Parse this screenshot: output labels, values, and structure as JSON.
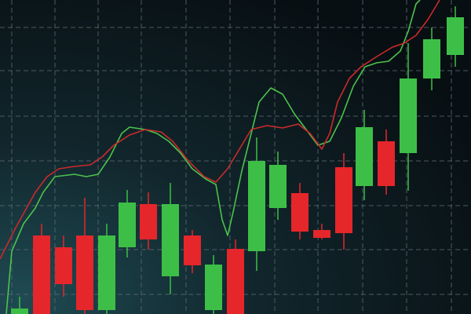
{
  "chart_data": {
    "type": "candlestick",
    "x": [
      25,
      53,
      81,
      108,
      136,
      162,
      189,
      217,
      245,
      272,
      300,
      327,
      354,
      382,
      410,
      438,
      464,
      492,
      520,
      550,
      580
    ],
    "open": [
      0,
      100,
      85,
      100,
      5,
      85,
      140,
      48,
      100,
      5,
      83,
      80,
      135,
      154,
      107,
      187,
      163,
      220,
      205,
      300,
      330
    ],
    "high": [
      22,
      115,
      100,
      148,
      115,
      158,
      155,
      167,
      107,
      75,
      95,
      225,
      207,
      167,
      115,
      205,
      260,
      235,
      345,
      365,
      392
    ],
    "low": [
      -5,
      -10,
      22,
      -5,
      -5,
      72,
      82,
      25,
      52,
      -5,
      -5,
      55,
      120,
      95,
      95,
      82,
      145,
      152,
      157,
      285,
      315
    ],
    "close": [
      7,
      -5,
      38,
      5,
      100,
      142,
      95,
      140,
      62,
      63,
      0,
      195,
      190,
      105,
      97,
      103,
      238,
      163,
      300,
      350,
      378
    ],
    "up_color": "#3dbf47",
    "down_color": "#e5262b",
    "xlim": [
      0,
      600
    ],
    "ylim": [
      0,
      400
    ],
    "xticks": [
      15,
      70,
      125,
      180,
      237,
      293,
      350,
      405,
      462,
      518,
      575
    ],
    "yticks": [
      25,
      82,
      138,
      195,
      252,
      310,
      365
    ],
    "grid": true,
    "overlays": [
      {
        "type": "line",
        "color": "#4cc24c",
        "x": [
          8,
          15,
          30,
          45,
          55,
          70,
          95,
          110,
          125,
          140,
          155,
          165,
          185,
          200,
          215,
          230,
          245,
          262,
          275,
          283,
          290,
          297,
          308,
          320,
          330,
          345,
          360,
          375,
          390,
          405,
          420,
          435,
          450,
          465,
          480,
          495,
          510,
          520,
          530,
          535
        ],
        "values": [
          0,
          80,
          115,
          135,
          155,
          175,
          178,
          175,
          178,
          200,
          230,
          238,
          235,
          230,
          220,
          205,
          185,
          172,
          165,
          120,
          100,
          130,
          182,
          230,
          270,
          288,
          280,
          255,
          235,
          215,
          220,
          250,
          290,
          315,
          320,
          322,
          335,
          360,
          395,
          400
        ]
      },
      {
        "type": "line",
        "color": "#cc2a2a",
        "x": [
          0,
          20,
          45,
          60,
          75,
          95,
          115,
          130,
          145,
          165,
          185,
          205,
          220,
          240,
          260,
          275,
          290,
          305,
          320,
          340,
          360,
          380,
          395,
          410,
          420,
          430,
          445,
          460,
          480,
          500,
          515,
          530,
          545,
          560
        ],
        "values": [
          70,
          110,
          155,
          175,
          185,
          188,
          190,
          200,
          215,
          228,
          235,
          232,
          220,
          195,
          175,
          168,
          185,
          210,
          235,
          240,
          237,
          242,
          230,
          210,
          230,
          270,
          300,
          315,
          328,
          340,
          345,
          355,
          375,
          400
        ]
      }
    ]
  }
}
